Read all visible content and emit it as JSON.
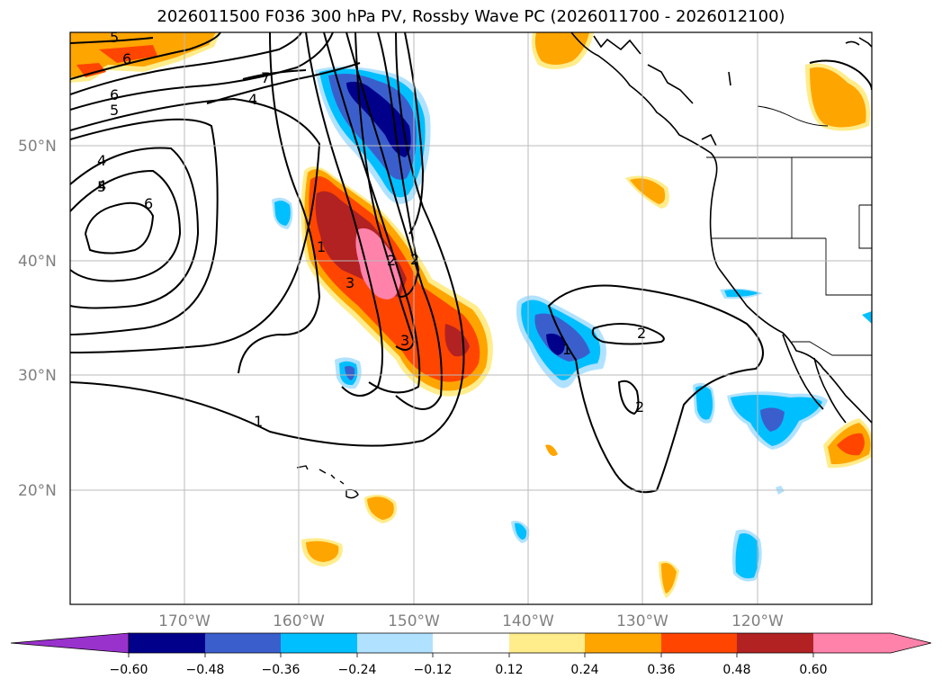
{
  "title": "2026011500 F036 300 hPa PV, Rossby Wave PC (2026011700 - 2026012100)",
  "lat_labels": [
    "50°N",
    "40°N",
    "30°N",
    "20°N"
  ],
  "lon_labels": [
    "170°W",
    "160°W",
    "150°W",
    "140°W",
    "130°W",
    "120°W"
  ],
  "colorbar": {
    "ticks": [
      "−0.60",
      "−0.48",
      "−0.36",
      "−0.24",
      "−0.12",
      "0.12",
      "0.24",
      "0.36",
      "0.48",
      "0.60"
    ],
    "colors": [
      "#9932cc",
      "#00008b",
      "#3a5fcd",
      "#00bfff",
      "#b0e2ff",
      "#ffffff",
      "#ffec8b",
      "#ffa500",
      "#ff4500",
      "#b22222",
      "#ff82ab"
    ]
  },
  "contour_labels": [
    "5",
    "6",
    "6",
    "5",
    "4",
    "4",
    "7",
    "4",
    "5",
    "6",
    "1",
    "1",
    "3",
    "2",
    "2",
    "3",
    "2",
    "1",
    "2"
  ]
}
